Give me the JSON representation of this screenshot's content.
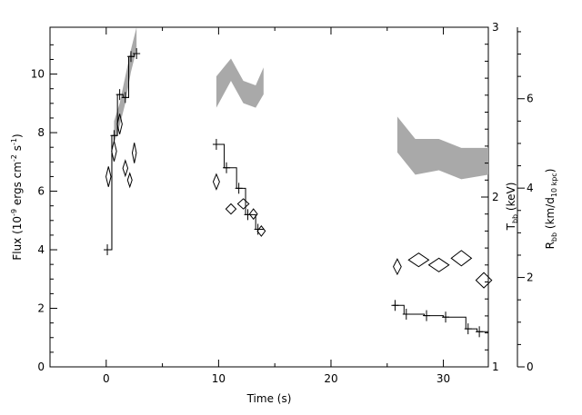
{
  "chart_data": {
    "type": "line",
    "xlabel": "Time (s)",
    "ylabel_left": {
      "base": "Flux (10",
      "exp1": "-9",
      "mid": " ergs cm",
      "exp2": "-2",
      "mid2": " s",
      "exp3": "-1",
      "end": ")"
    },
    "ylabel_right1": {
      "base": "T",
      "sub": "bb",
      "end": " (keV)"
    },
    "ylabel_right2": {
      "base": "R",
      "sub": "bb",
      "mid": " (km/d",
      "sub2": "10 kpc",
      "end": ")"
    },
    "xlim": [
      -5,
      34
    ],
    "ylim_flux": [
      0,
      11.6
    ],
    "ylim_T": [
      1,
      3
    ],
    "ylim_R": [
      0,
      7.6
    ],
    "x_ticks": [
      0,
      10,
      20,
      30
    ],
    "flux_ticks": [
      0,
      2,
      4,
      6,
      8,
      10
    ],
    "T_ticks": [
      1,
      2,
      3
    ],
    "R_ticks": [
      0,
      2,
      4,
      6
    ],
    "flux_series": [
      {
        "name": "burst1",
        "points": [
          {
            "x0": 0.0,
            "x1": 0.5,
            "y": 4.0
          },
          {
            "x0": 0.5,
            "x1": 1.0,
            "y": 7.9
          },
          {
            "x0": 1.0,
            "x1": 1.5,
            "y": 9.3
          },
          {
            "x0": 1.5,
            "x1": 2.0,
            "y": 9.2
          },
          {
            "x0": 2.0,
            "x1": 2.5,
            "y": 10.6
          },
          {
            "x0": 2.5,
            "x1": 2.8,
            "y": 10.7
          }
        ]
      },
      {
        "name": "burst2",
        "points": [
          {
            "x0": 9.6,
            "x1": 10.5,
            "y": 7.6
          },
          {
            "x0": 10.5,
            "x1": 11.6,
            "y": 6.8
          },
          {
            "x0": 11.6,
            "x1": 12.4,
            "y": 6.1
          },
          {
            "x0": 12.4,
            "x1": 13.3,
            "y": 5.2
          },
          {
            "x0": 13.3,
            "x1": 14.0,
            "y": 4.7
          }
        ]
      },
      {
        "name": "burst3",
        "points": [
          {
            "x0": 25.5,
            "x1": 26.5,
            "y": 2.1
          },
          {
            "x0": 26.5,
            "x1": 28.3,
            "y": 1.8
          },
          {
            "x0": 28.3,
            "x1": 30.0,
            "y": 1.75
          },
          {
            "x0": 30.0,
            "x1": 32.0,
            "y": 1.7
          },
          {
            "x0": 32.0,
            "x1": 33.0,
            "y": 1.3
          },
          {
            "x0": 33.0,
            "x1": 34.0,
            "y": 1.2
          }
        ]
      }
    ],
    "T_points": [
      {
        "x": 0.2,
        "y": 2.12,
        "dx": 0.22,
        "dy": 0.06
      },
      {
        "x": 0.7,
        "y": 2.27,
        "dx": 0.22,
        "dy": 0.06
      },
      {
        "x": 1.2,
        "y": 2.43,
        "dx": 0.22,
        "dy": 0.06
      },
      {
        "x": 1.7,
        "y": 2.17,
        "dx": 0.22,
        "dy": 0.045
      },
      {
        "x": 2.1,
        "y": 2.1,
        "dx": 0.2,
        "dy": 0.04
      },
      {
        "x": 2.5,
        "y": 2.26,
        "dx": 0.18,
        "dy": 0.06
      },
      {
        "x": 9.8,
        "y": 2.09,
        "dx": 0.28,
        "dy": 0.045
      },
      {
        "x": 11.1,
        "y": 1.93,
        "dx": 0.45,
        "dy": 0.03
      },
      {
        "x": 12.2,
        "y": 1.96,
        "dx": 0.5,
        "dy": 0.03
      },
      {
        "x": 13.1,
        "y": 1.9,
        "dx": 0.35,
        "dy": 0.03
      },
      {
        "x": 13.8,
        "y": 1.8,
        "dx": 0.35,
        "dy": 0.03
      },
      {
        "x": 25.9,
        "y": 1.59,
        "dx": 0.35,
        "dy": 0.045
      },
      {
        "x": 27.8,
        "y": 1.63,
        "dx": 0.9,
        "dy": 0.04
      },
      {
        "x": 29.6,
        "y": 1.6,
        "dx": 0.9,
        "dy": 0.04
      },
      {
        "x": 31.6,
        "y": 1.64,
        "dx": 0.9,
        "dy": 0.045
      },
      {
        "x": 33.6,
        "y": 1.51,
        "dx": 0.7,
        "dy": 0.045
      }
    ],
    "R_bands": [
      {
        "name": "burst1",
        "x": [
          0.7,
          1.2,
          1.7,
          2.2,
          2.7
        ],
        "lo": [
          5.0,
          5.4,
          5.9,
          6.6,
          7.1
        ],
        "hi": [
          5.5,
          5.9,
          6.5,
          7.1,
          7.6
        ]
      },
      {
        "name": "burst2",
        "x": [
          9.8,
          11.1,
          12.2,
          13.3,
          14.0
        ],
        "lo": [
          5.8,
          6.4,
          5.9,
          5.8,
          6.1
        ],
        "hi": [
          6.5,
          6.9,
          6.4,
          6.3,
          6.7
        ]
      },
      {
        "name": "burst3",
        "x": [
          25.9,
          27.5,
          29.6,
          31.6,
          34.0
        ],
        "lo": [
          4.8,
          4.3,
          4.4,
          4.2,
          4.3
        ],
        "hi": [
          5.6,
          5.1,
          5.1,
          4.9,
          4.9
        ]
      }
    ]
  }
}
